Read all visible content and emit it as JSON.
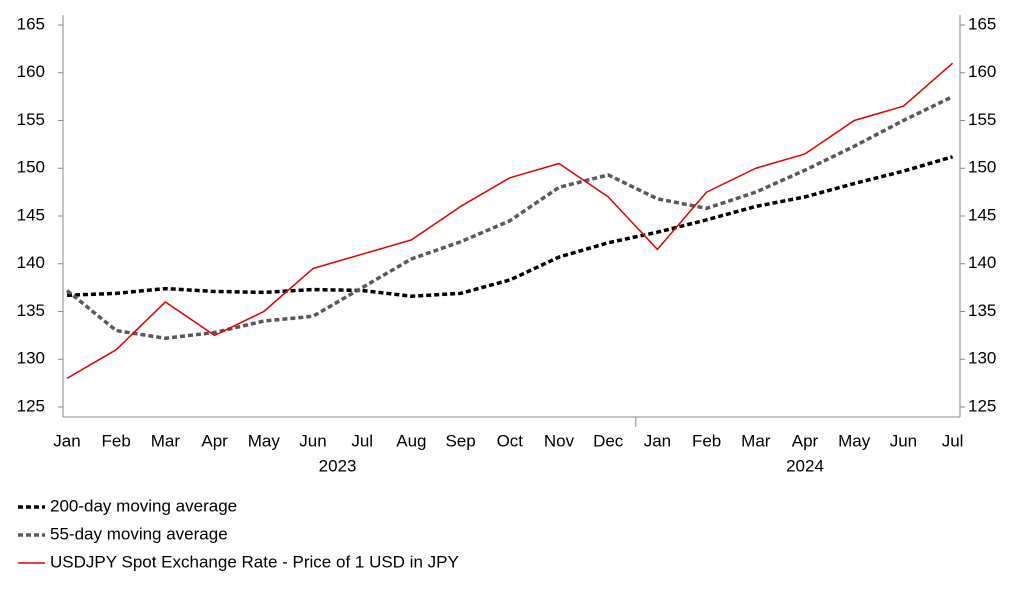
{
  "chart_data": {
    "type": "line",
    "categories": [
      "Jan",
      "Feb",
      "Mar",
      "Apr",
      "May",
      "Jun",
      "Jul",
      "Aug",
      "Sep",
      "Oct",
      "Nov",
      "Dec",
      "Jan",
      "Feb",
      "Mar",
      "Apr",
      "May",
      "Jun",
      "Jul"
    ],
    "groups": [
      {
        "label": "2023",
        "span": 12
      },
      {
        "label": "2024",
        "span": 7
      }
    ],
    "ylim": [
      125,
      165
    ],
    "yticks": [
      125,
      130,
      135,
      140,
      145,
      150,
      155,
      160,
      165
    ],
    "y2lim": [
      125,
      165
    ],
    "y2ticks": [
      125,
      130,
      135,
      140,
      145,
      150,
      155,
      160,
      165
    ],
    "series": [
      {
        "name": "200-day moving average",
        "color": "#000000",
        "dash": true,
        "values": [
          136.7,
          136.9,
          137.4,
          137.1,
          137.0,
          137.3,
          137.2,
          136.6,
          136.9,
          138.3,
          140.7,
          142.2,
          143.3,
          144.6,
          146.0,
          147.0,
          148.4,
          149.7,
          151.2
        ]
      },
      {
        "name": "55-day moving average",
        "color": "#595959",
        "dash": true,
        "values": [
          137.2,
          133.0,
          132.2,
          132.8,
          134.0,
          134.5,
          137.5,
          140.5,
          142.3,
          144.5,
          148.0,
          149.3,
          146.8,
          145.8,
          147.5,
          149.8,
          152.3,
          155.0,
          157.5
        ]
      },
      {
        "name": "USDJPY Spot Exchange Rate - Price of 1 USD in JPY",
        "color": "#e00000",
        "dash": false,
        "values": [
          128.0,
          131.0,
          136.0,
          132.5,
          135.0,
          139.5,
          141.0,
          142.5,
          146.0,
          149.0,
          150.5,
          147.0,
          141.5,
          147.5,
          150.0,
          151.5,
          155.0,
          156.5,
          161.0
        ]
      }
    ]
  }
}
